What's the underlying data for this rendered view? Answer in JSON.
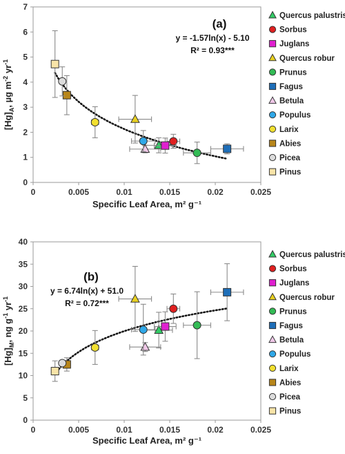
{
  "chart_data": [
    {
      "type": "scatter",
      "panel_label": "(a)",
      "xlabel": "Specific Leaf Area, m² g⁻¹",
      "ylabel": "[Hg]A, µg m⁻² yr⁻¹",
      "ylabel_parts": {
        "pre": "[Hg]",
        "sub": "A",
        "post": ", µg m",
        "sup1": "-2",
        "mid": " yr",
        "sup2": "-1"
      },
      "xlim": [
        0,
        0.025
      ],
      "ylim": [
        0,
        7
      ],
      "x_ticks": [
        0,
        0.005,
        0.01,
        0.015,
        0.02,
        0.025
      ],
      "x_tick_labels": [
        "0",
        "0.005",
        "0.01",
        "0.015",
        "0.02",
        "0.025"
      ],
      "y_ticks": [
        0,
        1,
        2,
        3,
        4,
        5,
        6,
        7
      ],
      "y_tick_labels": [
        "0",
        "1",
        "2",
        "3",
        "4",
        "5",
        "6",
        "7"
      ],
      "equation": "y = -1.57ln(x) - 5.10",
      "r2": "R² = 0.93***",
      "trendline": {
        "type": "log",
        "a": -1.57,
        "b": -5.1,
        "x_range": [
          0.0024,
          0.0213
        ]
      },
      "grid": false,
      "legend_position": "right",
      "series": [
        {
          "name": "Quercus palustris",
          "x": 0.0138,
          "y": 1.48,
          "xerr": 0.0015,
          "yerr": 0.3
        },
        {
          "name": "Sorbus",
          "x": 0.0154,
          "y": 1.64,
          "xerr": 0.0007,
          "yerr": 0.28
        },
        {
          "name": "Juglans",
          "x": 0.0145,
          "y": 1.47,
          "xerr": 0.0012,
          "yerr": 0.3
        },
        {
          "name": "Quercus robur",
          "x": 0.0112,
          "y": 2.52,
          "xerr": 0.0018,
          "yerr": 0.95
        },
        {
          "name": "Prunus",
          "x": 0.018,
          "y": 1.18,
          "xerr": 0.0015,
          "yerr": 0.43
        },
        {
          "name": "Fagus",
          "x": 0.0213,
          "y": 1.34,
          "xerr": 0.0018,
          "yerr": 0.2
        },
        {
          "name": "Betula",
          "x": 0.0123,
          "y": 1.33,
          "xerr": 0.0017,
          "yerr": 0.15
        },
        {
          "name": "Populus",
          "x": 0.0121,
          "y": 1.65,
          "xerr": 0.0013,
          "yerr": 0.42
        },
        {
          "name": "Larix",
          "x": 0.0068,
          "y": 2.4,
          "xerr": 0.0004,
          "yerr": 0.62
        },
        {
          "name": "Abies",
          "x": 0.0037,
          "y": 3.48,
          "xerr": 0.0004,
          "yerr": 0.78
        },
        {
          "name": "Picea",
          "x": 0.0032,
          "y": 4.03,
          "xerr": 0.0003,
          "yerr": 0.58
        },
        {
          "name": "Pinus",
          "x": 0.0024,
          "y": 4.72,
          "xerr": 0.0001,
          "yerr": 1.33
        }
      ]
    },
    {
      "type": "scatter",
      "panel_label": "(b)",
      "xlabel": "Specific Leaf Area, m² g⁻¹",
      "ylabel": "[Hg]M, ng g⁻¹ yr⁻¹",
      "ylabel_parts": {
        "pre": "[Hg]",
        "sub": "M",
        "post": ", ng g",
        "sup1": "-1",
        "mid": " yr",
        "sup2": "-1"
      },
      "xlim": [
        0,
        0.025
      ],
      "ylim": [
        0,
        40
      ],
      "x_ticks": [
        0,
        0.005,
        0.01,
        0.015,
        0.02,
        0.025
      ],
      "x_tick_labels": [
        "0",
        "0.005",
        "0.01",
        "0.015",
        "0.02",
        "0.025"
      ],
      "y_ticks": [
        0,
        5,
        10,
        15,
        20,
        25,
        30,
        35,
        40
      ],
      "y_tick_labels": [
        "0",
        "5",
        "10",
        "15",
        "20",
        "25",
        "30",
        "35",
        "40"
      ],
      "equation": "y = 6.74ln(x) + 51.0",
      "r2": "R² = 0.72***",
      "trendline": {
        "type": "log",
        "a": 6.74,
        "b": 51.0,
        "x_range": [
          0.0024,
          0.0213
        ]
      },
      "grid": false,
      "legend_position": "right",
      "series": [
        {
          "name": "Quercus palustris",
          "x": 0.0138,
          "y": 20.2,
          "xerr": 0.0015,
          "yerr": 4.0
        },
        {
          "name": "Sorbus",
          "x": 0.0154,
          "y": 25.0,
          "xerr": 0.0007,
          "yerr": 3.3
        },
        {
          "name": "Juglans",
          "x": 0.0145,
          "y": 21.0,
          "xerr": 0.0012,
          "yerr": 3.3
        },
        {
          "name": "Quercus robur",
          "x": 0.0112,
          "y": 27.2,
          "xerr": 0.0018,
          "yerr": 7.3
        },
        {
          "name": "Prunus",
          "x": 0.018,
          "y": 21.3,
          "xerr": 0.0015,
          "yerr": 7.5
        },
        {
          "name": "Fagus",
          "x": 0.0213,
          "y": 28.7,
          "xerr": 0.0018,
          "yerr": 6.4
        },
        {
          "name": "Betula",
          "x": 0.0123,
          "y": 16.4,
          "xerr": 0.0017,
          "yerr": 1.0
        },
        {
          "name": "Populus",
          "x": 0.0121,
          "y": 20.3,
          "xerr": 0.0013,
          "yerr": 5.7
        },
        {
          "name": "Larix",
          "x": 0.0068,
          "y": 16.3,
          "xerr": 0.0004,
          "yerr": 3.8
        },
        {
          "name": "Abies",
          "x": 0.0037,
          "y": 12.5,
          "xerr": 0.0004,
          "yerr": 1.5
        },
        {
          "name": "Picea",
          "x": 0.0032,
          "y": 12.8,
          "xerr": 0.0003,
          "yerr": 0.5
        },
        {
          "name": "Pinus",
          "x": 0.0024,
          "y": 11.0,
          "xerr": 0.0001,
          "yerr": 2.3
        }
      ]
    }
  ],
  "legend": [
    {
      "name": "Quercus palustris",
      "marker": "triangle",
      "color": "#33cc66"
    },
    {
      "name": "Sorbus",
      "marker": "circle",
      "color": "#e02020"
    },
    {
      "name": "Juglans",
      "marker": "square",
      "color": "#e020d0"
    },
    {
      "name": "Quercus robur",
      "marker": "triangle",
      "color": "#e8d020"
    },
    {
      "name": "Prunus",
      "marker": "circle",
      "color": "#33bb55"
    },
    {
      "name": "Fagus",
      "marker": "square",
      "color": "#1e6eb8"
    },
    {
      "name": "Betula",
      "marker": "triangle",
      "color": "#f0c8e8"
    },
    {
      "name": "Populus",
      "marker": "circle",
      "color": "#30a8e8"
    },
    {
      "name": "Larix",
      "marker": "circle",
      "color": "#f2e030"
    },
    {
      "name": "Abies",
      "marker": "square",
      "color": "#b8861a"
    },
    {
      "name": "Picea",
      "marker": "circle",
      "color": "#dcdcdc"
    },
    {
      "name": "Pinus",
      "marker": "square",
      "color": "#f8e4a8"
    }
  ]
}
